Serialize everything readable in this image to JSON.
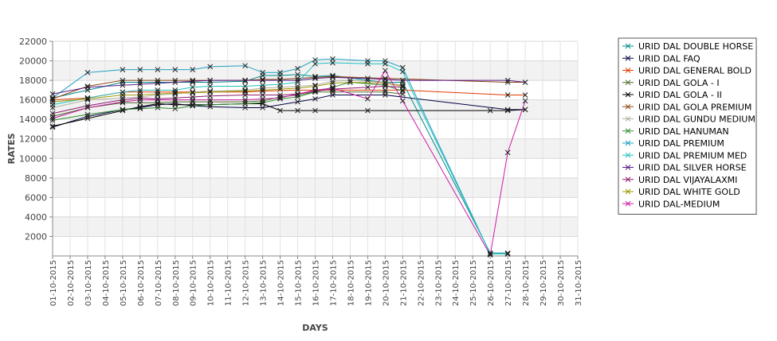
{
  "chart_data": {
    "type": "line",
    "xlabel": "DAYS",
    "ylabel": "RATES",
    "ylim": [
      0,
      22000
    ],
    "yticks": [
      2000,
      4000,
      6000,
      8000,
      10000,
      12000,
      14000,
      16000,
      18000,
      20000,
      22000
    ],
    "grid": true,
    "legend_position": "right",
    "categories": [
      "01-10-2015",
      "02-10-2015",
      "03-10-2015",
      "04-10-2015",
      "05-10-2015",
      "06-10-2015",
      "07-10-2015",
      "08-10-2015",
      "09-10-2015",
      "10-10-2015",
      "11-10-2015",
      "12-10-2015",
      "13-10-2015",
      "14-10-2015",
      "15-10-2015",
      "16-10-2015",
      "17-10-2015",
      "18-10-2015",
      "19-10-2015",
      "20-10-2015",
      "21-10-2015",
      "22-10-2015",
      "23-10-2015",
      "24-10-2015",
      "25-10-2015",
      "26-10-2015",
      "27-10-2015",
      "28-10-2015",
      "29-10-2015",
      "30-10-2015",
      "31-10-2015"
    ],
    "series": [
      {
        "name": "URID DAL DOUBLE HORSE",
        "color": "#008b8b",
        "points": [
          [
            0,
            16200
          ],
          [
            2,
            17000
          ],
          [
            4,
            17800
          ],
          [
            5,
            17800
          ],
          [
            6,
            17800
          ],
          [
            7,
            17800
          ],
          [
            8,
            17800
          ],
          [
            9,
            17800
          ],
          [
            11,
            17900
          ],
          [
            12,
            18500
          ],
          [
            13,
            18500
          ],
          [
            14,
            18600
          ],
          [
            15,
            18400
          ],
          [
            16,
            18500
          ],
          [
            18,
            18000
          ],
          [
            19,
            17800
          ],
          [
            20,
            17800
          ],
          [
            25,
            300
          ],
          [
            26,
            300
          ]
        ]
      },
      {
        "name": "URID DAL FAQ",
        "color": "#000040",
        "points": [
          [
            0,
            13200
          ],
          [
            2,
            14300
          ],
          [
            4,
            15000
          ],
          [
            5,
            15200
          ],
          [
            6,
            15500
          ],
          [
            7,
            15600
          ],
          [
            8,
            15400
          ],
          [
            9,
            15300
          ],
          [
            11,
            15200
          ],
          [
            12,
            15200
          ],
          [
            14,
            15800
          ],
          [
            15,
            16100
          ],
          [
            16,
            16500
          ],
          [
            19,
            16500
          ],
          [
            26,
            15000
          ],
          [
            27,
            15000
          ]
        ]
      },
      {
        "name": "URID DAL GENERAL BOLD",
        "color": "#e23a00",
        "points": [
          [
            0,
            16000
          ],
          [
            2,
            16200
          ],
          [
            4,
            16800
          ],
          [
            5,
            16800
          ],
          [
            6,
            16800
          ],
          [
            7,
            16800
          ],
          [
            8,
            16800
          ],
          [
            9,
            16800
          ],
          [
            11,
            16800
          ],
          [
            12,
            16900
          ],
          [
            14,
            17000
          ],
          [
            15,
            17000
          ],
          [
            16,
            17000
          ],
          [
            19,
            17000
          ],
          [
            20,
            17000
          ],
          [
            26,
            16500
          ],
          [
            27,
            16500
          ]
        ]
      },
      {
        "name": "URID DAL GOLA - I",
        "color": "#4b6b2a",
        "points": [
          [
            0,
            14300
          ],
          [
            2,
            15200
          ],
          [
            4,
            15700
          ],
          [
            5,
            15700
          ],
          [
            6,
            15700
          ],
          [
            7,
            15800
          ],
          [
            8,
            15800
          ],
          [
            9,
            15800
          ],
          [
            11,
            15800
          ],
          [
            12,
            15900
          ],
          [
            13,
            16300
          ],
          [
            14,
            16500
          ],
          [
            15,
            16800
          ],
          [
            16,
            16800
          ],
          [
            19,
            16800
          ],
          [
            20,
            16600
          ]
        ]
      },
      {
        "name": "URID DAL GOLA - II",
        "color": "#000000",
        "points": [
          [
            0,
            13300
          ],
          [
            2,
            14100
          ],
          [
            4,
            14900
          ],
          [
            5,
            15300
          ],
          [
            6,
            15600
          ],
          [
            7,
            15500
          ],
          [
            8,
            15500
          ],
          [
            9,
            15500
          ],
          [
            11,
            15600
          ],
          [
            12,
            15600
          ],
          [
            13,
            14900
          ],
          [
            14,
            14900
          ],
          [
            15,
            14900
          ],
          [
            18,
            14900
          ],
          [
            25,
            14900
          ],
          [
            26,
            14900
          ],
          [
            27,
            15000
          ]
        ]
      },
      {
        "name": "URID DAL GOLA PREMIUM",
        "color": "#8b4513",
        "points": [
          [
            0,
            16100
          ],
          [
            2,
            17400
          ],
          [
            4,
            18000
          ],
          [
            5,
            18000
          ],
          [
            6,
            18000
          ],
          [
            7,
            18000
          ],
          [
            8,
            18000
          ],
          [
            9,
            18000
          ],
          [
            11,
            18000
          ],
          [
            12,
            18100
          ],
          [
            13,
            18100
          ],
          [
            14,
            18200
          ],
          [
            15,
            18300
          ],
          [
            16,
            18400
          ],
          [
            19,
            18200
          ],
          [
            26,
            17800
          ],
          [
            27,
            17800
          ]
        ]
      },
      {
        "name": "URID DAL GUNDU MEDIUM",
        "color": "#b0b0a0",
        "points": [
          [
            0,
            15200
          ],
          [
            2,
            16000
          ],
          [
            4,
            16200
          ],
          [
            5,
            16300
          ],
          [
            6,
            16500
          ],
          [
            7,
            16600
          ],
          [
            8,
            16800
          ],
          [
            9,
            16900
          ],
          [
            11,
            17000
          ],
          [
            12,
            17200
          ],
          [
            13,
            17300
          ],
          [
            14,
            17400
          ],
          [
            15,
            17500
          ],
          [
            16,
            17900
          ],
          [
            17,
            18000
          ],
          [
            19,
            17800
          ],
          [
            20,
            17500
          ]
        ]
      },
      {
        "name": "URID DAL HANUMAN",
        "color": "#2e8b2e",
        "points": [
          [
            0,
            13900
          ],
          [
            2,
            14500
          ],
          [
            4,
            15000
          ],
          [
            5,
            15100
          ],
          [
            6,
            15200
          ],
          [
            7,
            15100
          ],
          [
            8,
            15400
          ],
          [
            9,
            15500
          ],
          [
            11,
            15600
          ],
          [
            12,
            15700
          ],
          [
            13,
            16100
          ],
          [
            14,
            16300
          ],
          [
            15,
            16800
          ],
          [
            16,
            17300
          ],
          [
            17,
            17800
          ],
          [
            19,
            17500
          ],
          [
            20,
            16900
          ]
        ]
      },
      {
        "name": "URID DAL PREMIUM",
        "color": "#1ea0c0",
        "points": [
          [
            0,
            16200
          ],
          [
            2,
            18800
          ],
          [
            4,
            19100
          ],
          [
            5,
            19100
          ],
          [
            6,
            19100
          ],
          [
            7,
            19100
          ],
          [
            8,
            19100
          ],
          [
            9,
            19400
          ],
          [
            11,
            19500
          ],
          [
            12,
            18800
          ],
          [
            13,
            18800
          ],
          [
            14,
            19200
          ],
          [
            15,
            20100
          ],
          [
            16,
            20200
          ],
          [
            18,
            20000
          ],
          [
            19,
            20000
          ],
          [
            20,
            19300
          ],
          [
            25,
            200
          ],
          [
            26,
            200
          ]
        ]
      },
      {
        "name": "URID DAL PREMIUM MED",
        "color": "#20c0c0",
        "points": [
          [
            0,
            15500
          ],
          [
            2,
            16200
          ],
          [
            4,
            16800
          ],
          [
            5,
            17000
          ],
          [
            6,
            17000
          ],
          [
            7,
            17000
          ],
          [
            8,
            17300
          ],
          [
            9,
            17400
          ],
          [
            11,
            17400
          ],
          [
            12,
            17500
          ],
          [
            13,
            17600
          ],
          [
            14,
            17800
          ],
          [
            15,
            19700
          ],
          [
            16,
            19800
          ],
          [
            18,
            19700
          ],
          [
            19,
            19700
          ],
          [
            20,
            18900
          ],
          [
            25,
            200
          ],
          [
            26,
            200
          ]
        ]
      },
      {
        "name": "URID DAL SILVER HORSE",
        "color": "#5a1a8a",
        "points": [
          [
            0,
            16600
          ],
          [
            2,
            17300
          ],
          [
            4,
            17500
          ],
          [
            5,
            17600
          ],
          [
            6,
            17700
          ],
          [
            7,
            17800
          ],
          [
            8,
            17900
          ],
          [
            9,
            18000
          ],
          [
            11,
            18000
          ],
          [
            12,
            18000
          ],
          [
            13,
            18000
          ],
          [
            14,
            18000
          ],
          [
            15,
            18200
          ],
          [
            16,
            18300
          ],
          [
            18,
            18200
          ],
          [
            19,
            18100
          ],
          [
            20,
            18000
          ],
          [
            26,
            18000
          ],
          [
            27,
            17800
          ]
        ]
      },
      {
        "name": "URID DAL VIJAYALAXMI",
        "color": "#8b1a6b",
        "points": [
          [
            0,
            14600
          ],
          [
            2,
            15400
          ],
          [
            4,
            16000
          ],
          [
            5,
            16200
          ],
          [
            6,
            16100
          ],
          [
            7,
            16200
          ],
          [
            8,
            16300
          ],
          [
            9,
            16400
          ],
          [
            11,
            16500
          ],
          [
            12,
            16500
          ],
          [
            13,
            16500
          ],
          [
            14,
            16600
          ],
          [
            15,
            16900
          ],
          [
            16,
            17100
          ],
          [
            18,
            17300
          ],
          [
            19,
            17400
          ],
          [
            20,
            17300
          ]
        ]
      },
      {
        "name": "URID DAL WHITE GOLD",
        "color": "#9a9a00",
        "points": [
          [
            0,
            15800
          ],
          [
            2,
            16100
          ],
          [
            4,
            16500
          ],
          [
            5,
            16500
          ],
          [
            6,
            16600
          ],
          [
            7,
            16700
          ],
          [
            8,
            16700
          ],
          [
            9,
            16800
          ],
          [
            11,
            16900
          ],
          [
            12,
            17000
          ],
          [
            13,
            17100
          ],
          [
            14,
            17200
          ],
          [
            15,
            17400
          ],
          [
            16,
            17700
          ],
          [
            17,
            17800
          ],
          [
            19,
            17700
          ],
          [
            20,
            17400
          ]
        ]
      },
      {
        "name": "URID DAL-MEDIUM",
        "color": "#cc1aa8",
        "points": [
          [
            0,
            14100
          ],
          [
            2,
            15200
          ],
          [
            4,
            15800
          ],
          [
            5,
            16000
          ],
          [
            6,
            16000
          ],
          [
            7,
            16000
          ],
          [
            8,
            16000
          ],
          [
            9,
            16000
          ],
          [
            11,
            16000
          ],
          [
            12,
            16100
          ],
          [
            13,
            16200
          ],
          [
            14,
            16600
          ],
          [
            15,
            17000
          ],
          [
            16,
            17200
          ],
          [
            18,
            16100
          ],
          [
            19,
            19000
          ],
          [
            20,
            15900
          ],
          [
            25,
            100
          ],
          [
            26,
            10600
          ],
          [
            27,
            15900
          ]
        ]
      }
    ]
  }
}
